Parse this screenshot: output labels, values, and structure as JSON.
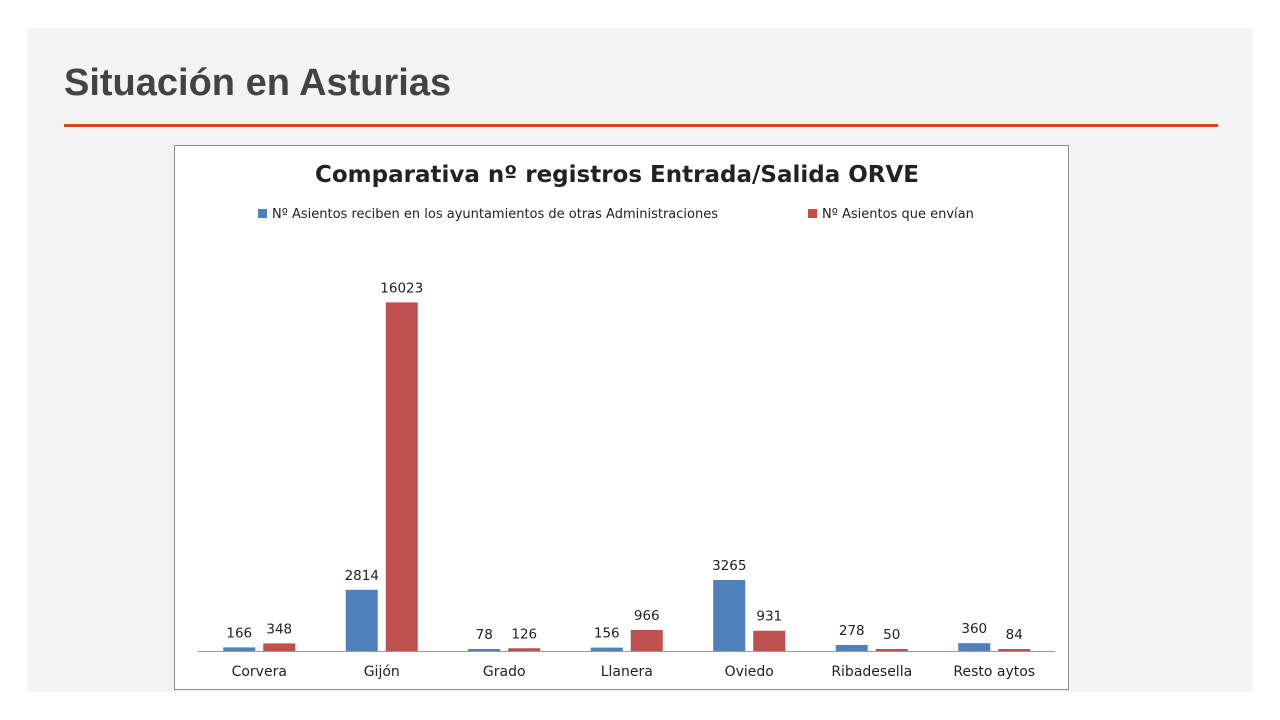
{
  "slide": {
    "title": "Situación en Asturias",
    "accent_color": "#d24726"
  },
  "chart_data": {
    "type": "bar",
    "title": "Comparativa nº registros Entrada/Salida ORVE",
    "xlabel": "",
    "ylabel": "",
    "ylim": [
      0,
      16500
    ],
    "grid": false,
    "legend_position": "top",
    "categories": [
      "Corvera",
      "Gijón",
      "Grado",
      "Llanera",
      "Oviedo",
      "Ribadesella",
      "Resto aytos"
    ],
    "series": [
      {
        "name": "Nº Asientos reciben en los ayuntamientos de otras Administraciones",
        "color": "#4f81bd",
        "values": [
          166,
          2814,
          78,
          156,
          3265,
          278,
          360
        ]
      },
      {
        "name": "Nº Asientos que envían",
        "color": "#c0504d",
        "values": [
          348,
          16023,
          126,
          966,
          931,
          50,
          84
        ]
      }
    ]
  }
}
